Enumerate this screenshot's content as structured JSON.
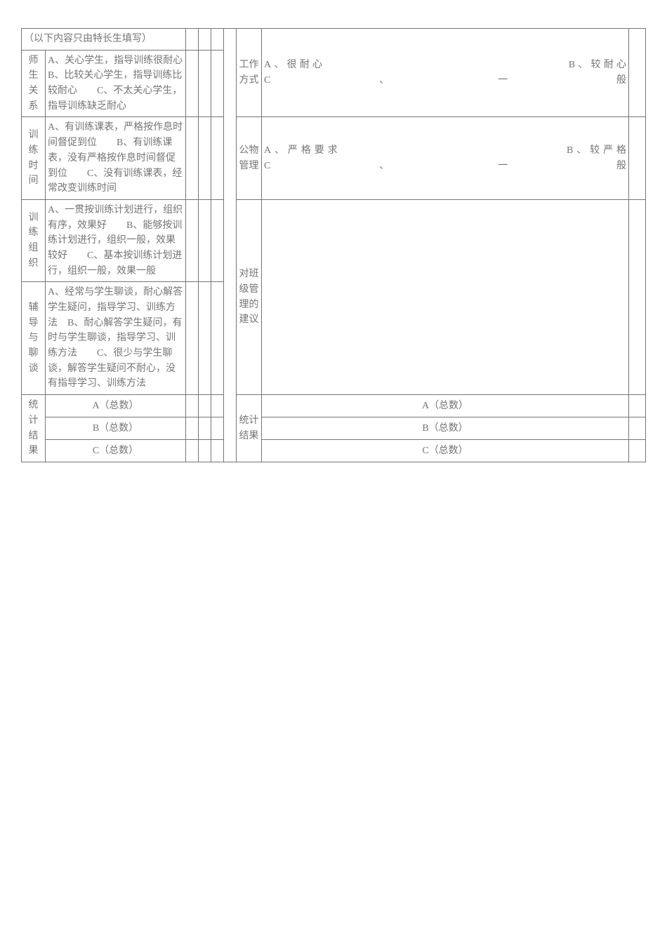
{
  "header_row": "（以下内容只由特长生填写）",
  "left": {
    "row1": {
      "label": "师生关系",
      "desc": "A、关心学生，指导训练很耐心　B、比较关心学生，指导训练比较耐心　　C、不太关心学生，指导训练缺乏耐心"
    },
    "row2": {
      "label": "训练时间",
      "desc": "A、有训练课表，严格按作息时间督促到位　　B、有训练课表，没有严格按作息时间督促到位　　C、没有训练课表，经常改变训练时间"
    },
    "row3": {
      "label": "训练组织",
      "desc": "A、一贯按训练计划进行，组织有序，效果好　　B、能够按训练计划进行，组织一般，效果较好　　C、基本按训练计划进行，组织一般，效果一般"
    },
    "row4": {
      "label": "辅导与聊谈",
      "desc": "A、经常与学生聊谈，耐心解答学生疑问，指导学习、训练方法　B、耐心解答学生疑问，有时与学生聊谈，指导学习、训练方法　　C、很少与学生聊谈，解答学生疑问不耐心，没有指导学习、训练方法"
    },
    "totals": {
      "label": "统计结果",
      "A": "A（总数）",
      "B": "B（总数）",
      "C": "C（总数）"
    }
  },
  "right": {
    "row1": {
      "label": "工作方式",
      "desc": "A、很耐心　　　　　　　　　　　　　　　　　　　B、较耐心　　　　　　　　　　　　　　　　　　　C、一般"
    },
    "row2": {
      "label": "公物管理",
      "desc": "A、严格要求　　　　　　　　　　　　　　　　　B、较严格　　　　　　　　　　　　　　　　　　　C、一般"
    },
    "row3": {
      "label": "对班级管理的建议",
      "desc": ""
    },
    "totals": {
      "label": "统计结果",
      "A": "A（总数）",
      "B": "B（总数）",
      "C": "C（总数）"
    }
  }
}
